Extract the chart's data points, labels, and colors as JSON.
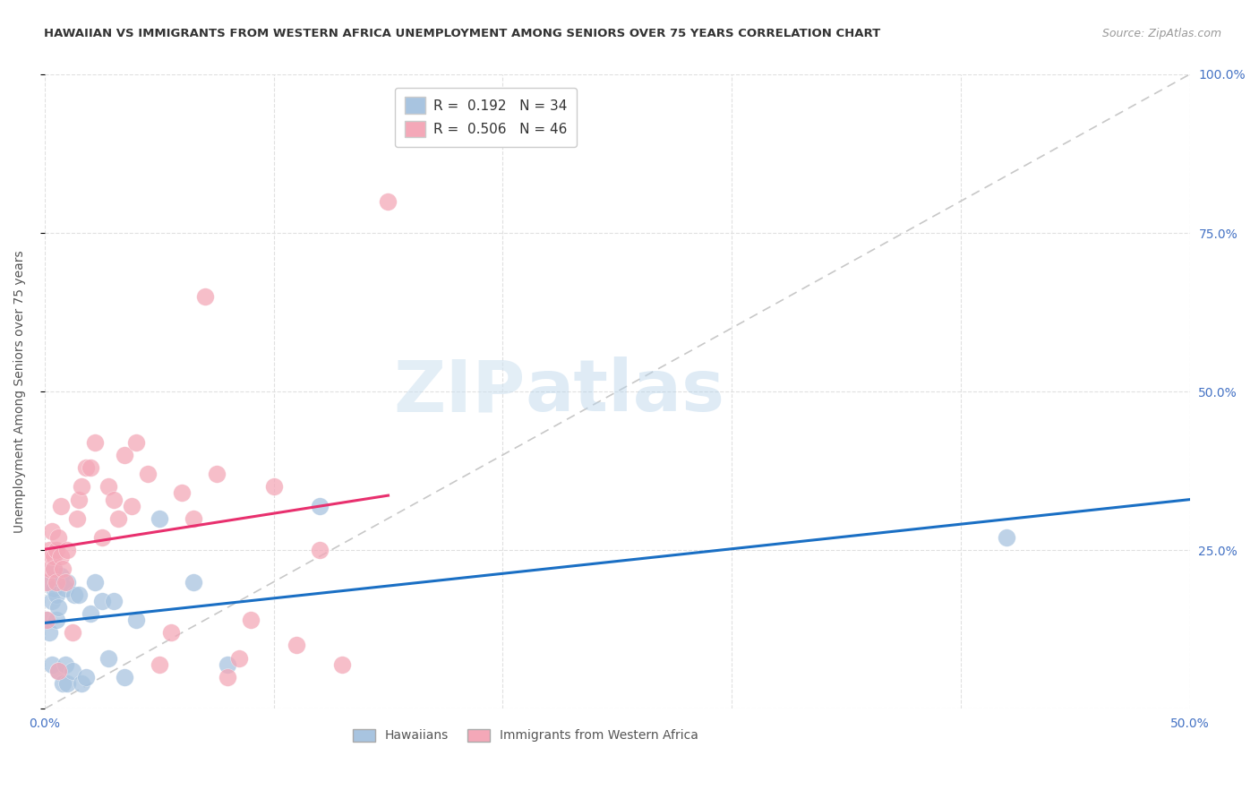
{
  "title": "HAWAIIAN VS IMMIGRANTS FROM WESTERN AFRICA UNEMPLOYMENT AMONG SENIORS OVER 75 YEARS CORRELATION CHART",
  "source": "Source: ZipAtlas.com",
  "ylabel": "Unemployment Among Seniors over 75 years",
  "xlim": [
    0.0,
    0.5
  ],
  "ylim": [
    0.0,
    1.0
  ],
  "xticks": [
    0.0,
    0.1,
    0.2,
    0.3,
    0.4,
    0.5
  ],
  "yticks": [
    0.0,
    0.25,
    0.5,
    0.75,
    1.0
  ],
  "xtick_labels_show": [
    "0.0%",
    "",
    "",
    "",
    "",
    "50.0%"
  ],
  "ytick_labels_right": [
    "",
    "25.0%",
    "50.0%",
    "75.0%",
    "100.0%"
  ],
  "hawaiian_color": "#a8c4e0",
  "western_africa_color": "#f4a8b8",
  "hawaiian_R": 0.192,
  "hawaiian_N": 34,
  "western_africa_R": 0.506,
  "western_africa_N": 46,
  "hawaiian_line_color": "#1a6fc4",
  "western_africa_line_color": "#e8306e",
  "diagonal_color": "#c8c8c8",
  "watermark_zip": "ZIP",
  "watermark_atlas": "atlas",
  "hawaiian_x": [
    0.001,
    0.002,
    0.002,
    0.003,
    0.003,
    0.004,
    0.004,
    0.005,
    0.005,
    0.006,
    0.006,
    0.007,
    0.008,
    0.009,
    0.009,
    0.01,
    0.01,
    0.012,
    0.013,
    0.015,
    0.016,
    0.018,
    0.02,
    0.022,
    0.025,
    0.028,
    0.03,
    0.035,
    0.04,
    0.05,
    0.065,
    0.08,
    0.12,
    0.42
  ],
  "hawaiian_y": [
    0.14,
    0.12,
    0.2,
    0.07,
    0.17,
    0.19,
    0.22,
    0.14,
    0.18,
    0.06,
    0.16,
    0.21,
    0.04,
    0.07,
    0.19,
    0.04,
    0.2,
    0.06,
    0.18,
    0.18,
    0.04,
    0.05,
    0.15,
    0.2,
    0.17,
    0.08,
    0.17,
    0.05,
    0.14,
    0.3,
    0.2,
    0.07,
    0.32,
    0.27
  ],
  "western_africa_x": [
    0.001,
    0.001,
    0.002,
    0.002,
    0.003,
    0.003,
    0.004,
    0.004,
    0.005,
    0.005,
    0.006,
    0.006,
    0.007,
    0.007,
    0.008,
    0.009,
    0.01,
    0.012,
    0.014,
    0.015,
    0.016,
    0.018,
    0.02,
    0.022,
    0.025,
    0.028,
    0.03,
    0.032,
    0.035,
    0.038,
    0.04,
    0.045,
    0.05,
    0.055,
    0.06,
    0.065,
    0.07,
    0.075,
    0.08,
    0.085,
    0.09,
    0.1,
    0.11,
    0.12,
    0.13,
    0.15
  ],
  "western_africa_y": [
    0.14,
    0.2,
    0.22,
    0.25,
    0.24,
    0.28,
    0.24,
    0.22,
    0.2,
    0.25,
    0.06,
    0.27,
    0.24,
    0.32,
    0.22,
    0.2,
    0.25,
    0.12,
    0.3,
    0.33,
    0.35,
    0.38,
    0.38,
    0.42,
    0.27,
    0.35,
    0.33,
    0.3,
    0.4,
    0.32,
    0.42,
    0.37,
    0.07,
    0.12,
    0.34,
    0.3,
    0.65,
    0.37,
    0.05,
    0.08,
    0.14,
    0.35,
    0.1,
    0.25,
    0.07,
    0.8
  ]
}
